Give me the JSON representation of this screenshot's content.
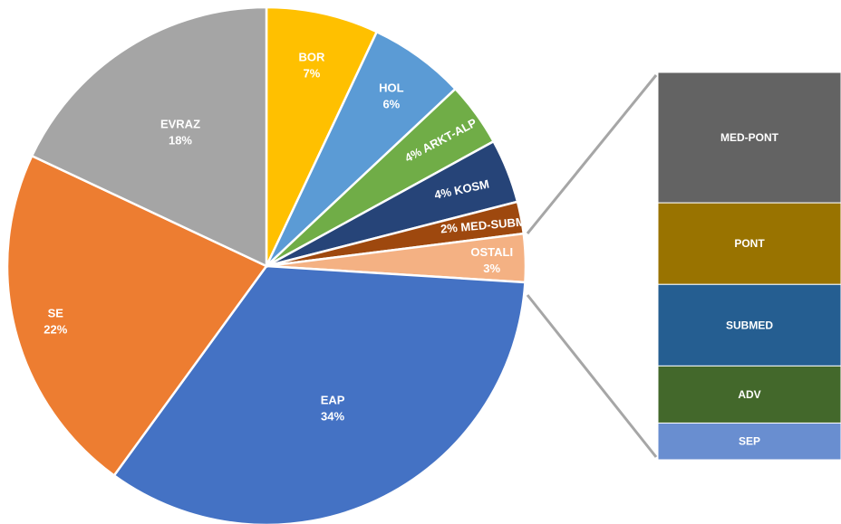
{
  "chart_data": {
    "type": "pie",
    "subtype": "bar-of-pie",
    "title": "",
    "slices": [
      {
        "label": "EAP",
        "value": 34,
        "pct_label": "34%",
        "color": "#4472C4"
      },
      {
        "label": "SE",
        "value": 22,
        "pct_label": "22%",
        "color": "#ED7D31"
      },
      {
        "label": "EVRAZ",
        "value": 18,
        "pct_label": "18%",
        "color": "#A5A5A5"
      },
      {
        "label": "BOR",
        "value": 7,
        "pct_label": "7%",
        "color": "#FFC000"
      },
      {
        "label": "HOL",
        "value": 6,
        "pct_label": "6%",
        "color": "#5B9BD5"
      },
      {
        "label": "ARKT-ALP",
        "value": 4,
        "pct_label": "4%",
        "color": "#70AD47"
      },
      {
        "label": "KOSM",
        "value": 4,
        "pct_label": "4%",
        "color": "#264478"
      },
      {
        "label": "MED-SUBM",
        "value": 2,
        "pct_label": "2%",
        "color": "#9E480E"
      },
      {
        "label": "OSTALI",
        "value": 3,
        "pct_label": "3%",
        "color": "#F4B183"
      }
    ],
    "breakdown_of": "OSTALI",
    "breakdown": [
      {
        "label": "MED-PONT",
        "value": 0.96,
        "color": "#636363"
      },
      {
        "label": "PONT",
        "value": 0.6,
        "color": "#997300"
      },
      {
        "label": "SUBMED",
        "value": 0.6,
        "color": "#255E91"
      },
      {
        "label": "ADV",
        "value": 0.42,
        "color": "#43682B"
      },
      {
        "label": "SEP",
        "value": 0.27,
        "color": "#698ED0"
      }
    ]
  }
}
